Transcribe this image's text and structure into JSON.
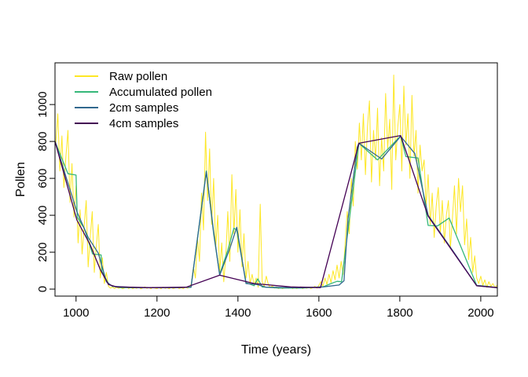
{
  "figure": {
    "background": "#ffffff"
  },
  "axes": {
    "xlabel": "Time (years)",
    "ylabel": "Pollen",
    "x_ticks": [
      1000,
      1200,
      1400,
      1600,
      1800,
      2000
    ],
    "y_ticks": [
      0,
      200,
      400,
      600,
      800,
      1000
    ],
    "xlim": [
      948,
      2041
    ],
    "ylim": [
      -38,
      1226
    ],
    "axis_color": "#000000"
  },
  "legend": {
    "position": "top-left",
    "items": [
      {
        "label": "Raw pollen",
        "color": "#FDE725"
      },
      {
        "label": "Accumulated pollen",
        "color": "#35B779"
      },
      {
        "label": "2cm samples",
        "color": "#31688E"
      },
      {
        "label": "4cm samples",
        "color": "#440154"
      }
    ]
  },
  "chart_data": {
    "type": "line",
    "title": "",
    "xlabel": "Time (years)",
    "ylabel": "Pollen",
    "xlim": [
      948,
      2041
    ],
    "ylim": [
      -38,
      1226
    ],
    "grid": false,
    "legend_position": "top-left",
    "series": [
      {
        "name": "Raw pollen",
        "color": "#FDE725",
        "line_width": 1,
        "x_start": 950,
        "x_step": 5,
        "values": [
          790,
          950,
          640,
          830,
          550,
          720,
          860,
          470,
          680,
          390,
          560,
          250,
          430,
          190,
          340,
          480,
          120,
          280,
          420,
          90,
          230,
          350,
          60,
          170,
          30,
          90,
          15,
          5,
          12,
          3,
          10,
          4,
          8,
          2,
          6,
          12,
          3,
          9,
          2,
          7,
          4,
          10,
          2,
          6,
          12,
          4,
          8,
          2,
          10,
          5,
          3,
          8,
          2,
          11,
          4,
          7,
          2,
          9,
          3,
          6,
          10,
          3,
          7,
          2,
          12,
          5,
          9,
          30,
          120,
          60,
          280,
          150,
          520,
          320,
          850,
          480,
          760,
          350,
          600,
          220,
          400,
          90,
          250,
          40,
          180,
          420,
          150,
          620,
          300,
          540,
          200,
          430,
          120,
          300,
          60,
          150,
          30,
          80,
          20,
          60,
          10,
          460,
          40,
          15,
          70,
          25,
          8,
          18,
          5,
          12,
          3,
          9,
          2,
          7,
          14,
          4,
          10,
          2,
          8,
          3,
          6,
          12,
          2,
          9,
          4,
          11,
          3,
          7,
          15,
          5,
          20,
          40,
          15,
          60,
          25,
          80,
          35,
          100,
          50,
          130,
          60,
          150,
          80,
          250,
          420,
          300,
          600,
          450,
          800,
          650,
          900,
          700,
          950,
          620,
          880,
          1020,
          580,
          860,
          700,
          980,
          560,
          820,
          640,
          1060,
          760,
          920,
          540,
          1160,
          700,
          880,
          1000,
          640,
          1100,
          780,
          950,
          600,
          1050,
          720,
          860,
          520,
          780,
          640,
          700,
          450,
          620,
          350,
          520,
          280,
          450,
          550,
          300,
          480,
          250,
          400,
          480,
          220,
          380,
          560,
          300,
          600,
          420,
          560,
          240,
          380,
          160,
          280,
          90,
          180,
          60,
          30,
          70,
          20,
          50,
          10,
          40,
          15,
          30,
          8,
          20
        ]
      },
      {
        "name": "Accumulated pollen",
        "color": "#35B779",
        "line_width": 1.3,
        "x": [
          948,
          980,
          1000,
          1003,
          1020,
          1041,
          1062,
          1064,
          1080,
          1090,
          1110,
          1200,
          1284,
          1322,
          1340,
          1355,
          1375,
          1390,
          1397,
          1420,
          1440,
          1449,
          1460,
          1500,
          1560,
          1610,
          1630,
          1645,
          1656,
          1699,
          1745,
          1802,
          1815,
          1845,
          1870,
          1893,
          1922,
          1990,
          2010,
          2040
        ],
        "y": [
          800,
          625,
          618,
          390,
          330,
          190,
          185,
          95,
          30,
          15,
          8,
          7,
          10,
          640,
          300,
          80,
          210,
          330,
          320,
          35,
          18,
          55,
          12,
          6,
          6,
          12,
          30,
          42,
          40,
          790,
          700,
          830,
          718,
          710,
          345,
          342,
          385,
          20,
          16,
          8
        ]
      },
      {
        "name": "2cm samples",
        "color": "#31688E",
        "line_width": 1.3,
        "x": [
          948,
          1002,
          1030,
          1055,
          1075,
          1090,
          1150,
          1250,
          1284,
          1322,
          1340,
          1355,
          1380,
          1397,
          1420,
          1447,
          1470,
          1550,
          1610,
          1650,
          1662,
          1672,
          1695,
          1699,
          1755,
          1802,
          1837,
          1870,
          1932,
          1990,
          2040
        ],
        "y": [
          800,
          420,
          280,
          195,
          40,
          15,
          8,
          8,
          10,
          635,
          310,
          75,
          220,
          335,
          30,
          25,
          10,
          7,
          12,
          22,
          45,
          380,
          770,
          790,
          705,
          828,
          735,
          400,
          204,
          18,
          8
        ]
      },
      {
        "name": "4cm samples",
        "color": "#440154",
        "line_width": 1.3,
        "x": [
          948,
          1002,
          1035,
          1060,
          1080,
          1100,
          1180,
          1272,
          1355,
          1440,
          1530,
          1604,
          1699,
          1802,
          1870,
          1932,
          1990,
          2040
        ],
        "y": [
          800,
          375,
          240,
          105,
          25,
          12,
          8,
          10,
          75,
          30,
          12,
          8,
          790,
          832,
          395,
          200,
          18,
          8
        ]
      }
    ]
  }
}
